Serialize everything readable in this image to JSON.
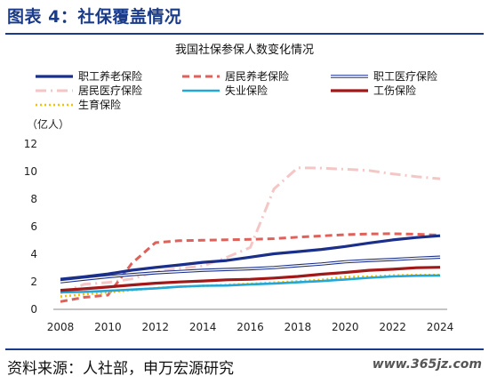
{
  "figure_title": "图表 4：社保覆盖情况",
  "source": "资料来源：人社部，申万宏源研究",
  "watermark": "www.365jz.com",
  "chart_data": {
    "type": "line",
    "title": "我国社保参保人数变化情况",
    "ylabel": "（亿人）",
    "xlabel": "",
    "x": [
      2008,
      2009,
      2010,
      2011,
      2012,
      2013,
      2014,
      2015,
      2016,
      2017,
      2018,
      2019,
      2020,
      2021,
      2022,
      2023,
      2024
    ],
    "xticks": [
      2008,
      2010,
      2012,
      2014,
      2016,
      2018,
      2020,
      2022,
      2024
    ],
    "yticks": [
      0,
      2,
      4,
      6,
      8,
      10,
      12
    ],
    "ylim": [
      0,
      12
    ],
    "grid": false,
    "legend_position": "top",
    "series": [
      {
        "name": "职工养老保险",
        "color": "#1a2f8a",
        "style": "solid-thick",
        "values": [
          2.19,
          2.36,
          2.57,
          2.84,
          3.04,
          3.22,
          3.41,
          3.54,
          3.79,
          4.03,
          4.19,
          4.35,
          4.56,
          4.81,
          5.04,
          5.21,
          5.34
        ]
      },
      {
        "name": "居民养老保险",
        "color": "#e0605a",
        "style": "dashed",
        "values": [
          0.56,
          0.87,
          1.03,
          3.32,
          4.84,
          4.98,
          5.01,
          5.05,
          5.08,
          5.13,
          5.24,
          5.33,
          5.42,
          5.47,
          5.49,
          5.45,
          5.38
        ]
      },
      {
        "name": "职工医疗保险",
        "color": "#1a2f8a",
        "style": "double",
        "values": [
          2.0,
          2.19,
          2.37,
          2.52,
          2.65,
          2.74,
          2.83,
          2.89,
          2.95,
          3.03,
          3.17,
          3.29,
          3.45,
          3.54,
          3.62,
          3.71,
          3.79
        ]
      },
      {
        "name": "居民医疗保险",
        "color": "#f5c6c6",
        "style": "dashdot",
        "values": [
          1.18,
          1.82,
          1.95,
          2.21,
          2.72,
          2.96,
          3.15,
          3.77,
          4.49,
          8.74,
          10.27,
          10.25,
          10.17,
          10.08,
          9.83,
          9.63,
          9.48
        ]
      },
      {
        "name": "失业保险",
        "color": "#22a7d8",
        "style": "solid",
        "values": [
          1.24,
          1.27,
          1.34,
          1.43,
          1.52,
          1.64,
          1.71,
          1.73,
          1.81,
          1.88,
          1.96,
          2.05,
          2.17,
          2.29,
          2.39,
          2.44,
          2.46
        ]
      },
      {
        "name": "工伤保险",
        "color": "#a01818",
        "style": "solid-thick",
        "values": [
          1.38,
          1.49,
          1.62,
          1.77,
          1.9,
          1.99,
          2.06,
          2.14,
          2.18,
          2.27,
          2.39,
          2.55,
          2.68,
          2.83,
          2.91,
          3.02,
          3.05
        ]
      },
      {
        "name": "生育保险",
        "color": "#f2c200",
        "style": "dotted",
        "values": [
          0.93,
          1.09,
          1.23,
          1.39,
          1.54,
          1.64,
          1.7,
          1.78,
          1.85,
          1.94,
          2.04,
          2.14,
          2.35,
          2.38,
          2.46,
          2.49,
          2.5
        ]
      }
    ]
  }
}
